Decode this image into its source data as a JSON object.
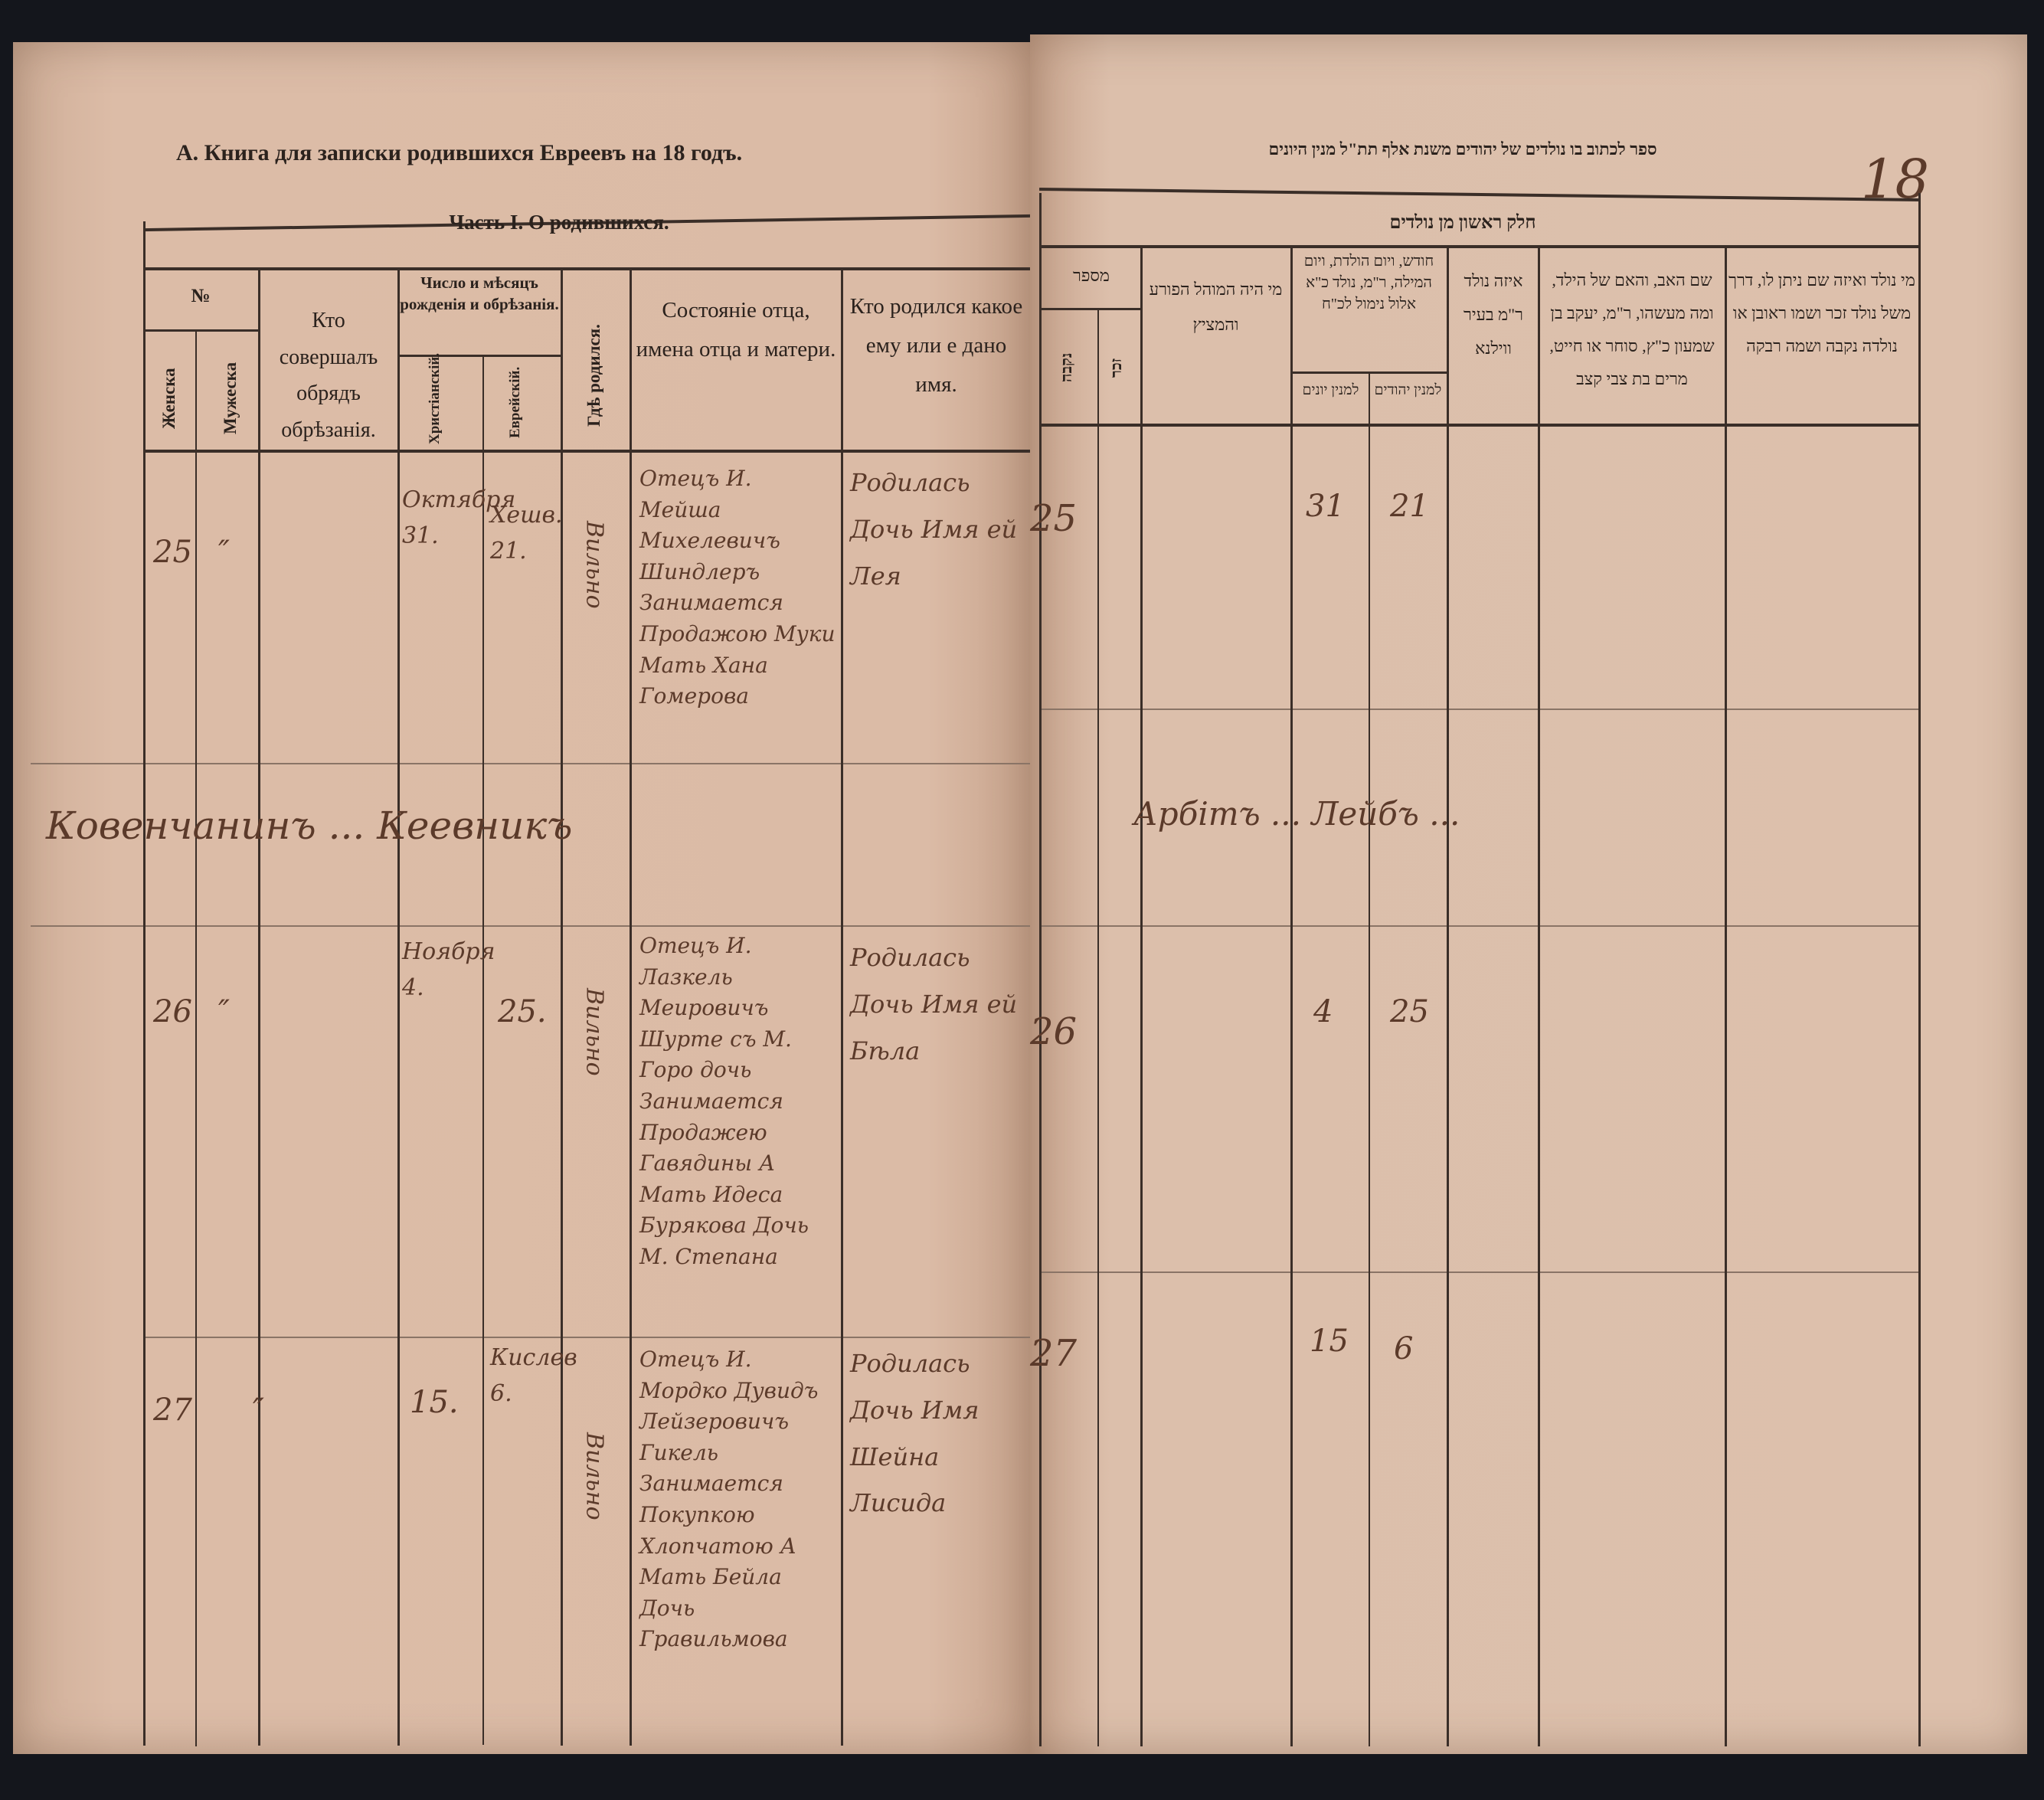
{
  "left_page": {
    "title": "А. Книга для записки родившихся Евреевъ на 18      годъ.",
    "part_title": "Часть I.  О родившихся.",
    "columns": {
      "number": "№",
      "female": "Женска",
      "male": "Мужеска",
      "circumciser": "Кто совершалъ обрядъ обрѣзанія.",
      "date_group": "Число и мѣсяцъ рожденія и обрѣзанія.",
      "christian": "Христіанскій.",
      "jewish": "Еврейскій.",
      "birthplace": "Гдѣ родился.",
      "parents": "Состояніе отца, имена отца и матери.",
      "child": "Кто родился какое ему или е дано имя."
    },
    "entries": [
      {
        "no": "25",
        "male": "″",
        "christian_date": "Октября 31.",
        "jewish_date": "Хешв. 21.",
        "birthplace": "Вильно",
        "parents": "Отецъ И. Мейша Михелевичъ Шиндлеръ Занимается Продажою Муки Мать Хана Гомерова",
        "child": "Родилась Дочь Имя ей Лея"
      },
      {
        "no": "26",
        "male": "″",
        "christian_date": "Ноября 4.",
        "jewish_date": "25.",
        "birthplace": "Вильно",
        "parents": "Отецъ И. Лазкель Меировичъ Шурте съ М. Горо дочь Занимается Продажею Гавядины А Мать Идеса Бурякова Дочь М. Степана",
        "child": "Родилась Дочь Имя ей Бѣла"
      },
      {
        "no": "27",
        "male": "″",
        "christian_date": "15.",
        "jewish_date": "Кислев 6.",
        "birthplace": "Вильно",
        "parents": "Отецъ И. Мордко Дувидъ Лейзеровичъ Гикель Занимается Покупкою Хлопчатою А Мать Бейла Дочь Гравильмова",
        "child": "Родилась Дочь Имя Шейна Лисида"
      }
    ],
    "signature_row": "Ковенчанинъ ... Кеевникъ"
  },
  "right_page": {
    "title": "ספר לכתוב בו נולדים של יהודים משנת אלף תת\"ל מנין היונים",
    "page_number": "18",
    "part_title": "חלק ראשון מן נולדים",
    "columns": {
      "number": "מספר",
      "female": "נקבה",
      "male": "זכר",
      "mohel": "מי היה המוהל הפורע והמציץ",
      "date_group": "חודש, ויום הולדת, ויום המילה, ר\"מ, נולד כ\"א אלול נימול לכ\"ח",
      "greek": "למנין יונים",
      "jewish": "למנין יהודים",
      "city": "איזה נולד ר\"מ בעיר ווילנא",
      "father_mother": "שם האב, והאם של הילד, ומה מעשהו, ר\"מ, יעקב בן שמעון כ\"ץ, סוחר או חייט, מרים בת צבי קצב",
      "child": "מי נולד ואיזה שם ניתן לו, דרך משל נולד זכר ושמו ראובן או נולדה נקבה ושמה רבקה"
    },
    "entries": [
      {
        "no": "25",
        "greek_date": "31",
        "jewish_date": "21"
      },
      {
        "no": "26",
        "greek_date": "4",
        "jewish_date": "25"
      },
      {
        "no": "27",
        "greek_date": "15",
        "jewish_date": "6"
      }
    ],
    "signature_row": "Арбітъ ... Лейбъ ..."
  }
}
